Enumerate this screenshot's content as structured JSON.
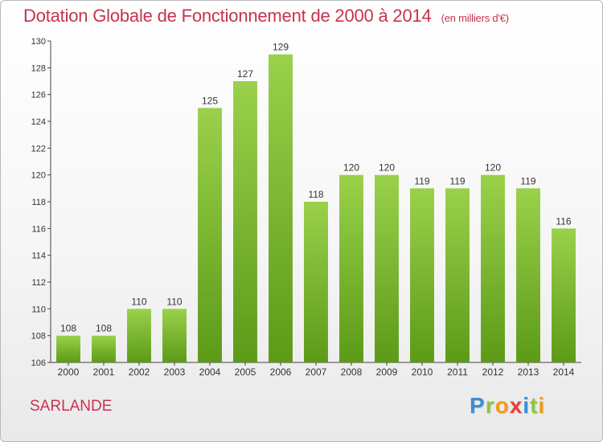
{
  "header": {
    "title": "Dotation Globale de Fonctionnement de 2000 à 2014",
    "subtitle": "(en milliers d'€)"
  },
  "footer": {
    "city": "SARLANDE",
    "logo_letters": [
      {
        "ch": "P",
        "color": "#3a8fd6"
      },
      {
        "ch": "r",
        "color": "#8cc63f"
      },
      {
        "ch": "o",
        "color": "#f39c12"
      },
      {
        "ch": "x",
        "color": "#e8403a"
      },
      {
        "ch": "i",
        "color": "#3a8fd6"
      },
      {
        "ch": "t",
        "color": "#8cc63f"
      },
      {
        "ch": "i",
        "color": "#f39c12"
      }
    ]
  },
  "colors": {
    "bar_top": "#9ad14b",
    "bar_bottom": "#5c9a18",
    "accent": "#c8324e"
  },
  "chart_data": {
    "type": "bar",
    "categories": [
      "2000",
      "2001",
      "2002",
      "2003",
      "2004",
      "2005",
      "2006",
      "2007",
      "2008",
      "2009",
      "2010",
      "2011",
      "2012",
      "2013",
      "2014"
    ],
    "values": [
      108,
      108,
      110,
      110,
      125,
      127,
      129,
      118,
      120,
      120,
      119,
      119,
      120,
      119,
      116
    ],
    "title": "Dotation Globale de Fonctionnement de 2000 à 2014",
    "subtitle": "(en milliers d'€)",
    "xlabel": "",
    "ylabel": "",
    "ylim": [
      106,
      130
    ],
    "yticks": [
      106,
      108,
      110,
      112,
      114,
      116,
      118,
      120,
      122,
      124,
      126,
      128,
      130
    ],
    "grid": false
  }
}
